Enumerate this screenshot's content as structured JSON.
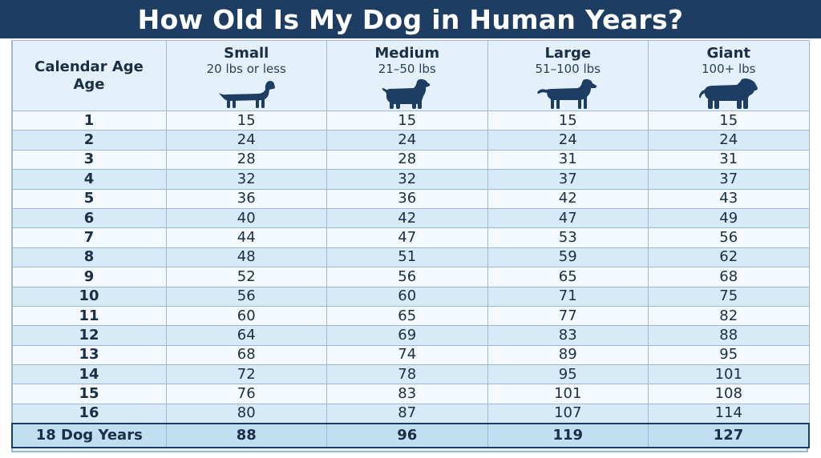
{
  "title": "How Old Is My Dog in Human Years?",
  "chart_data": {
    "type": "table",
    "row_header": "Calendar Age Age",
    "columns": [
      {
        "name": "Small",
        "sub": "20 lbs or less",
        "icon": "dachshund-icon"
      },
      {
        "name": "Medium",
        "sub": "21–50 lbs",
        "icon": "spaniel-icon"
      },
      {
        "name": "Large",
        "sub": "51–100 lbs",
        "icon": "retriever-icon"
      },
      {
        "name": "Giant",
        "sub": "100+ lbs",
        "icon": "mastiff-icon"
      }
    ],
    "rows": [
      {
        "age": "1",
        "values": [
          "15",
          "15",
          "15",
          "15"
        ]
      },
      {
        "age": "2",
        "values": [
          "24",
          "24",
          "24",
          "24"
        ]
      },
      {
        "age": "3",
        "values": [
          "28",
          "28",
          "31",
          "31"
        ]
      },
      {
        "age": "4",
        "values": [
          "32",
          "32",
          "37",
          "37"
        ]
      },
      {
        "age": "5",
        "values": [
          "36",
          "36",
          "42",
          "43"
        ]
      },
      {
        "age": "6",
        "values": [
          "40",
          "42",
          "47",
          "49"
        ]
      },
      {
        "age": "7",
        "values": [
          "44",
          "47",
          "53",
          "56"
        ]
      },
      {
        "age": "8",
        "values": [
          "48",
          "51",
          "59",
          "62"
        ]
      },
      {
        "age": "9",
        "values": [
          "52",
          "56",
          "65",
          "68"
        ]
      },
      {
        "age": "10",
        "values": [
          "56",
          "60",
          "71",
          "75"
        ]
      },
      {
        "age": "11",
        "values": [
          "60",
          "65",
          "77",
          "82"
        ]
      },
      {
        "age": "12",
        "values": [
          "64",
          "69",
          "83",
          "88"
        ]
      },
      {
        "age": "13",
        "values": [
          "68",
          "74",
          "89",
          "95"
        ]
      },
      {
        "age": "14",
        "values": [
          "72",
          "78",
          "95",
          "101"
        ]
      },
      {
        "age": "15",
        "values": [
          "76",
          "83",
          "101",
          "108"
        ]
      },
      {
        "age": "16",
        "values": [
          "80",
          "87",
          "107",
          "114"
        ]
      }
    ],
    "footer": {
      "label": "18 Dog Years",
      "values": [
        "88",
        "96",
        "119",
        "127"
      ]
    }
  },
  "colors": {
    "banner": "#1d3d63",
    "row_light": "#f4f9fd",
    "row_dark": "#d7eaf7",
    "footer": "#c2def1",
    "grid": "#9cb9d1"
  }
}
